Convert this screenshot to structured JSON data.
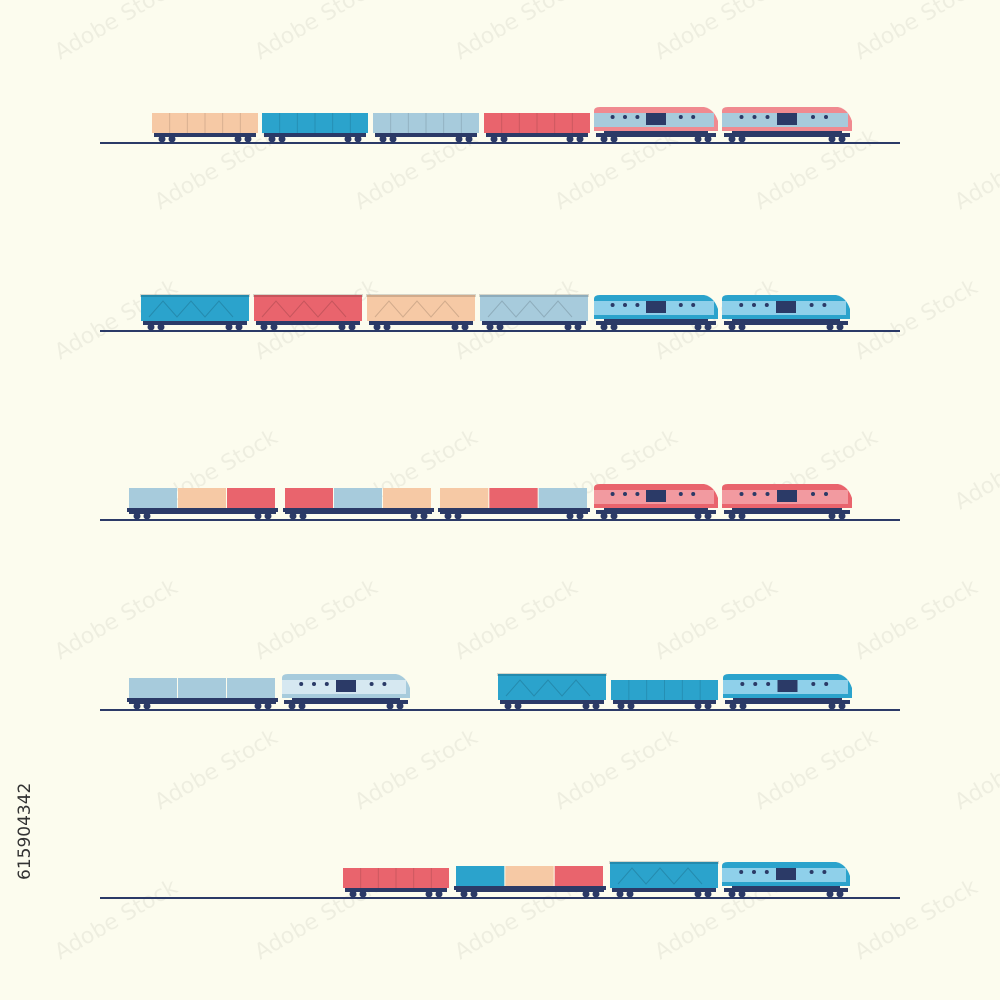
{
  "stock_id": "615904342",
  "watermark": "Adobe Stock"
}
